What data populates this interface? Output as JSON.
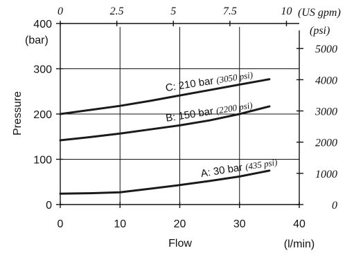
{
  "chart_data": {
    "type": "line",
    "xlabel": "Flow",
    "x_unit": "(l/min)",
    "ylabel": "Pressure",
    "y_unit": "(bar)",
    "xlim": [
      0,
      40
    ],
    "ylim": [
      0,
      400
    ],
    "x_ticks": [
      "0",
      "10",
      "20",
      "30",
      "40"
    ],
    "y_ticks": [
      "0",
      "100",
      "200",
      "300",
      "400"
    ],
    "top_axis": {
      "unit": "(US gpm)",
      "ticks": [
        "0",
        "2.5",
        "5",
        "7.5",
        "10"
      ]
    },
    "right_axis": {
      "unit": "(psi)",
      "ticks": [
        "0",
        "1000",
        "2000",
        "3000",
        "4000",
        "5000"
      ]
    },
    "grid": true,
    "series": [
      {
        "name": "A: 30 bar",
        "name_psi": "(435 psi)",
        "x": [
          0,
          5,
          10,
          15,
          20,
          25,
          30,
          35
        ],
        "y": [
          24,
          25,
          27,
          35,
          43,
          52,
          62,
          75
        ]
      },
      {
        "name": "B: 150 bar",
        "name_psi": "(2200 psi)",
        "x": [
          0,
          5,
          10,
          15,
          20,
          25,
          30,
          35
        ],
        "y": [
          142,
          149,
          157,
          166,
          175,
          186,
          200,
          217
        ]
      },
      {
        "name": "C: 210 bar",
        "name_psi": "(3050 psi)",
        "x": [
          0,
          5,
          10,
          15,
          20,
          25,
          30,
          35
        ],
        "y": [
          200,
          209,
          218,
          229,
          241,
          253,
          265,
          277
        ]
      }
    ]
  }
}
